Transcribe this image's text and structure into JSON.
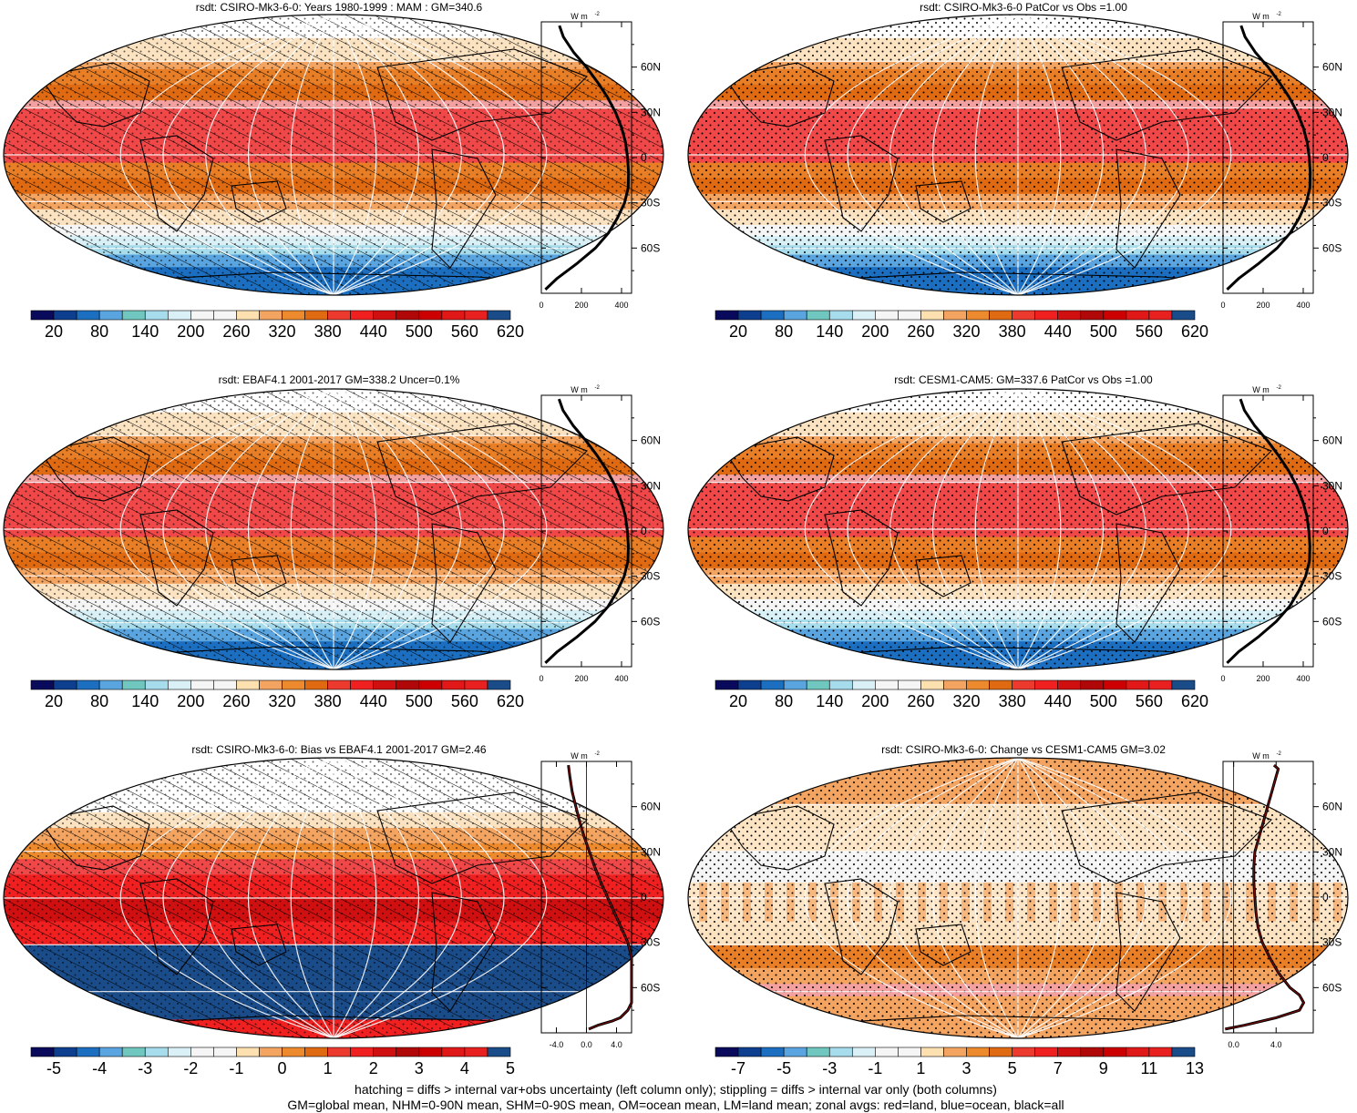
{
  "panels": [
    {
      "title": "rsdt: CSIRO-Mk3-6-0: Years 1980-1999 : MAM : GM=340.6",
      "pattern": "hatch",
      "cbar_labels": [
        "20",
        "80",
        "140",
        "200",
        "260",
        "320",
        "380",
        "440",
        "500",
        "560",
        "620"
      ],
      "profile": {
        "unit": "W m",
        "unit_sup": "-2",
        "xticks": [
          "0",
          "200",
          "400"
        ],
        "xrange": [
          0,
          450
        ],
        "lat_labels": [
          "60N",
          "30N",
          "0",
          "30S",
          "60S"
        ],
        "lats": [
          -87.5,
          -80,
          -70,
          -60,
          -50,
          -40,
          -30,
          -20,
          -10,
          0,
          10,
          20,
          30,
          40,
          50,
          60,
          70,
          80,
          87.5
        ],
        "values": [
          20,
          80,
          180,
          270,
          335,
          380,
          415,
          433,
          435,
          430,
          420,
          400,
          370,
          330,
          280,
          225,
          160,
          110,
          90
        ]
      }
    },
    {
      "title": "rsdt: CSIRO-Mk3-6-0 PatCor vs Obs =1.00",
      "pattern": "stipple",
      "cbar_labels": [
        "20",
        "80",
        "140",
        "200",
        "260",
        "320",
        "380",
        "440",
        "500",
        "560",
        "620"
      ],
      "profile": {
        "unit": "W m",
        "unit_sup": "-2",
        "xticks": [
          "0",
          "200",
          "400"
        ],
        "xrange": [
          0,
          450
        ],
        "lat_labels": [
          "60N",
          "30N",
          "0",
          "30S",
          "60S"
        ],
        "lats": [
          -87.5,
          -80,
          -70,
          -60,
          -50,
          -40,
          -30,
          -20,
          -10,
          0,
          10,
          20,
          30,
          40,
          50,
          60,
          70,
          80,
          87.5
        ],
        "values": [
          20,
          80,
          180,
          270,
          335,
          380,
          415,
          433,
          435,
          430,
          420,
          400,
          370,
          330,
          280,
          225,
          160,
          110,
          90
        ]
      }
    },
    {
      "title": "rsdt: EBAF4.1 2001-2017 GM=338.2 Uncer=0.1%",
      "pattern": "hatch",
      "cbar_labels": [
        "20",
        "80",
        "140",
        "200",
        "260",
        "320",
        "380",
        "440",
        "500",
        "560",
        "620"
      ],
      "profile": {
        "unit": "W m",
        "unit_sup": "-2",
        "xticks": [
          "0",
          "200",
          "400"
        ],
        "xrange": [
          0,
          450
        ],
        "lat_labels": [
          "60N",
          "30N",
          "0",
          "30S",
          "60S"
        ],
        "lats": [
          -87.5,
          -80,
          -70,
          -60,
          -50,
          -40,
          -30,
          -20,
          -10,
          0,
          10,
          20,
          30,
          40,
          50,
          60,
          70,
          80,
          87.5
        ],
        "values": [
          20,
          80,
          180,
          268,
          333,
          378,
          413,
          432,
          434,
          429,
          419,
          398,
          368,
          328,
          278,
          222,
          158,
          108,
          88
        ]
      }
    },
    {
      "title": "rsdt: CESM1-CAM5: GM=337.6 PatCor vs Obs =1.00",
      "pattern": "stipple",
      "cbar_labels": [
        "20",
        "80",
        "140",
        "200",
        "260",
        "320",
        "380",
        "440",
        "500",
        "560",
        "620"
      ],
      "profile": {
        "unit": "W m",
        "unit_sup": "-2",
        "xticks": [
          "0",
          "200",
          "400"
        ],
        "xrange": [
          0,
          450
        ],
        "lat_labels": [
          "60N",
          "30N",
          "0",
          "30S",
          "60S"
        ],
        "lats": [
          -87.5,
          -80,
          -70,
          -60,
          -50,
          -40,
          -30,
          -20,
          -10,
          0,
          10,
          20,
          30,
          40,
          50,
          60,
          70,
          80,
          87.5
        ],
        "values": [
          20,
          78,
          178,
          266,
          332,
          377,
          412,
          431,
          433,
          428,
          418,
          397,
          367,
          327,
          277,
          221,
          157,
          107,
          87
        ]
      }
    },
    {
      "title": "rsdt: CSIRO-Mk3-6-0: Bias vs EBAF4.1 2001-2017 GM=2.46",
      "pattern": "hatch",
      "cbar_labels": [
        "-5",
        "-4",
        "-3",
        "-2",
        "-1",
        "0",
        "1",
        "2",
        "3",
        "4",
        "5"
      ],
      "profile": {
        "unit": "W m",
        "unit_sup": "-2",
        "xticks": [
          "-4.0",
          "0.0",
          "4.0"
        ],
        "xrange": [
          -6,
          6
        ],
        "zero_line": 0,
        "lat_labels": [
          "60N",
          "30N",
          "0",
          "30S",
          "60S"
        ],
        "lats": [
          -87.5,
          -85,
          -82,
          -80,
          -75,
          -70,
          -60,
          -50,
          -40,
          -30,
          -20,
          -10,
          0,
          10,
          20,
          30,
          40,
          50,
          60,
          70,
          80,
          87.5
        ],
        "values": [
          0.3,
          1.5,
          3.5,
          4.5,
          5.5,
          6,
          6,
          6,
          6,
          5.5,
          4.6,
          3.7,
          2.8,
          1.9,
          1.1,
          0.4,
          -0.3,
          -0.9,
          -1.4,
          -1.9,
          -2.2,
          -2.4
        ]
      }
    },
    {
      "title": "rsdt: CSIRO-Mk3-6-0: Change vs CESM1-CAM5 GM=3.02",
      "pattern": "stipple",
      "cbar_labels": [
        "-7",
        "-5",
        "-3",
        "-1",
        "1",
        "3",
        "5",
        "7",
        "9",
        "11",
        "13"
      ],
      "profile": {
        "unit": "W m",
        "unit_sup": "-2",
        "xticks": [
          "0.0",
          "4.0"
        ],
        "xrange": [
          -1,
          7.5
        ],
        "lat_labels": [
          "60N",
          "30N",
          "0",
          "30S",
          "60S"
        ],
        "lats": [
          -87.5,
          -85,
          -80,
          -75,
          -70,
          -65,
          -60,
          -50,
          -40,
          -30,
          -20,
          -10,
          0,
          10,
          20,
          30,
          40,
          50,
          60,
          70,
          80,
          85,
          87.5
        ],
        "values": [
          -0.8,
          1,
          4,
          6.2,
          6.6,
          6.2,
          5.3,
          4.2,
          3.4,
          2.7,
          2.3,
          2.1,
          2,
          1.9,
          1.9,
          2,
          2.4,
          2.8,
          3.2,
          3.6,
          4,
          4.2,
          3.8
        ]
      }
    }
  ],
  "footer": {
    "line1": "hatching = diffs > internal var+obs uncertainty (left column only); stippling = diffs > internal var only (both columns)",
    "line2": "GM=global mean, NHM=0-90N mean, SHM=0-90S mean, OM=ocean mean, LM=land mean; zonal avgs: red=land, blue=ocean, black=all"
  },
  "colorbar_colors": [
    "#0a0a5c",
    "#0e3f8f",
    "#1c6fc0",
    "#5aa5e0",
    "#6fc7c0",
    "#a6dcec",
    "#d9f1f6",
    "#f5f5f5",
    "#f5f5f5",
    "#fde0b0",
    "#f4a461",
    "#ee8a2e",
    "#e06a12",
    "#ec3a2e",
    "#f02020",
    "#d01010",
    "#b00808",
    "#cc0000",
    "#e01818",
    "#e82020",
    "#1a4c8a"
  ]
}
